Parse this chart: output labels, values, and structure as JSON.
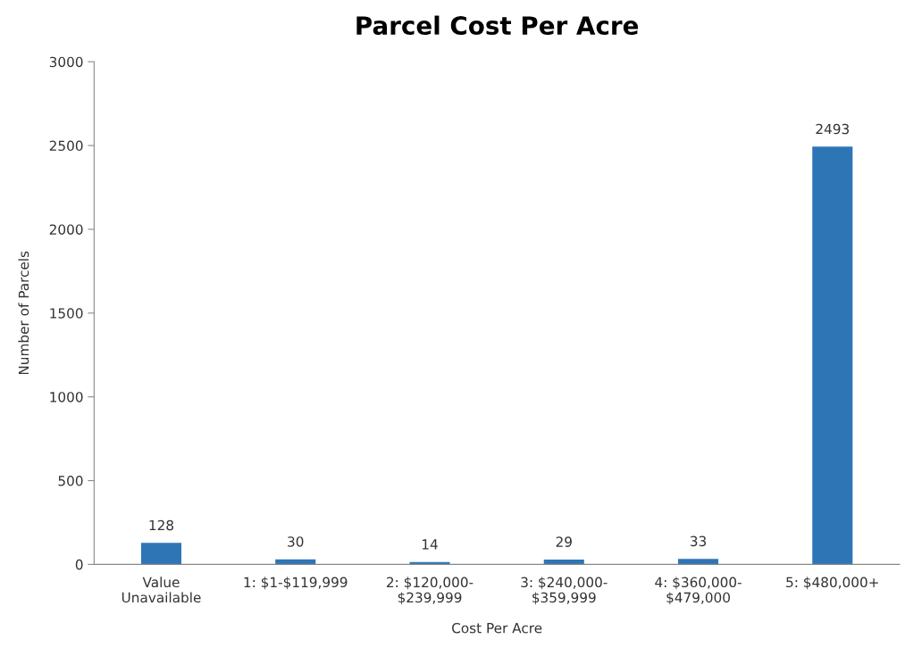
{
  "chart_data": {
    "type": "bar",
    "title": "Parcel Cost Per Acre",
    "xlabel": "Cost Per Acre",
    "ylabel": "Number of Parcels",
    "categories": [
      "Value\nUnavailable",
      "1: $1-$119,999",
      "2: $120,000-\n$239,999",
      "3: $240,000-\n$359,999",
      "4: $360,000-\n$479,000",
      "5: $480,000+"
    ],
    "values": [
      128,
      30,
      14,
      29,
      33,
      2493
    ],
    "color": "#2e75b6",
    "ylim": [
      0,
      3000
    ],
    "yticks": [
      0,
      500,
      1000,
      1500,
      2000,
      2500,
      3000
    ],
    "grid": false,
    "data_labels": true
  }
}
